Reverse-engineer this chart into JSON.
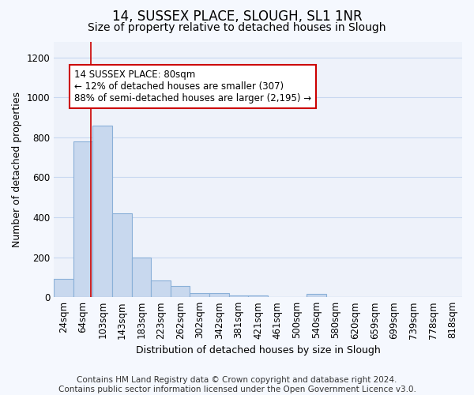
{
  "title": "14, SUSSEX PLACE, SLOUGH, SL1 1NR",
  "subtitle": "Size of property relative to detached houses in Slough",
  "xlabel": "Distribution of detached houses by size in Slough",
  "ylabel": "Number of detached properties",
  "categories": [
    "24sqm",
    "64sqm",
    "103sqm",
    "143sqm",
    "183sqm",
    "223sqm",
    "262sqm",
    "302sqm",
    "342sqm",
    "381sqm",
    "421sqm",
    "461sqm",
    "500sqm",
    "540sqm",
    "580sqm",
    "620sqm",
    "659sqm",
    "699sqm",
    "739sqm",
    "778sqm",
    "818sqm"
  ],
  "values": [
    90,
    780,
    860,
    420,
    200,
    85,
    55,
    20,
    20,
    10,
    10,
    0,
    0,
    15,
    0,
    0,
    0,
    0,
    0,
    0,
    0
  ],
  "bar_color": "#c8d8ee",
  "bar_edge_color": "#8ab0d8",
  "bar_edge_width": 0.8,
  "grid_color": "#c8d8f0",
  "background_color": "#eef2fa",
  "fig_background_color": "#f5f8fe",
  "red_line_x": 1.41,
  "red_line_color": "#cc0000",
  "annotation_text": "14 SUSSEX PLACE: 80sqm\n← 12% of detached houses are smaller (307)\n88% of semi-detached houses are larger (2,195) →",
  "annotation_box_color": "#ffffff",
  "annotation_box_edge_color": "#cc0000",
  "footnote": "Contains HM Land Registry data © Crown copyright and database right 2024.\nContains public sector information licensed under the Open Government Licence v3.0.",
  "ylim": [
    0,
    1280
  ],
  "yticks": [
    0,
    200,
    400,
    600,
    800,
    1000,
    1200
  ],
  "title_fontsize": 12,
  "subtitle_fontsize": 10,
  "label_fontsize": 9,
  "tick_fontsize": 8.5,
  "footnote_fontsize": 7.5,
  "annotation_fontsize": 8.5
}
